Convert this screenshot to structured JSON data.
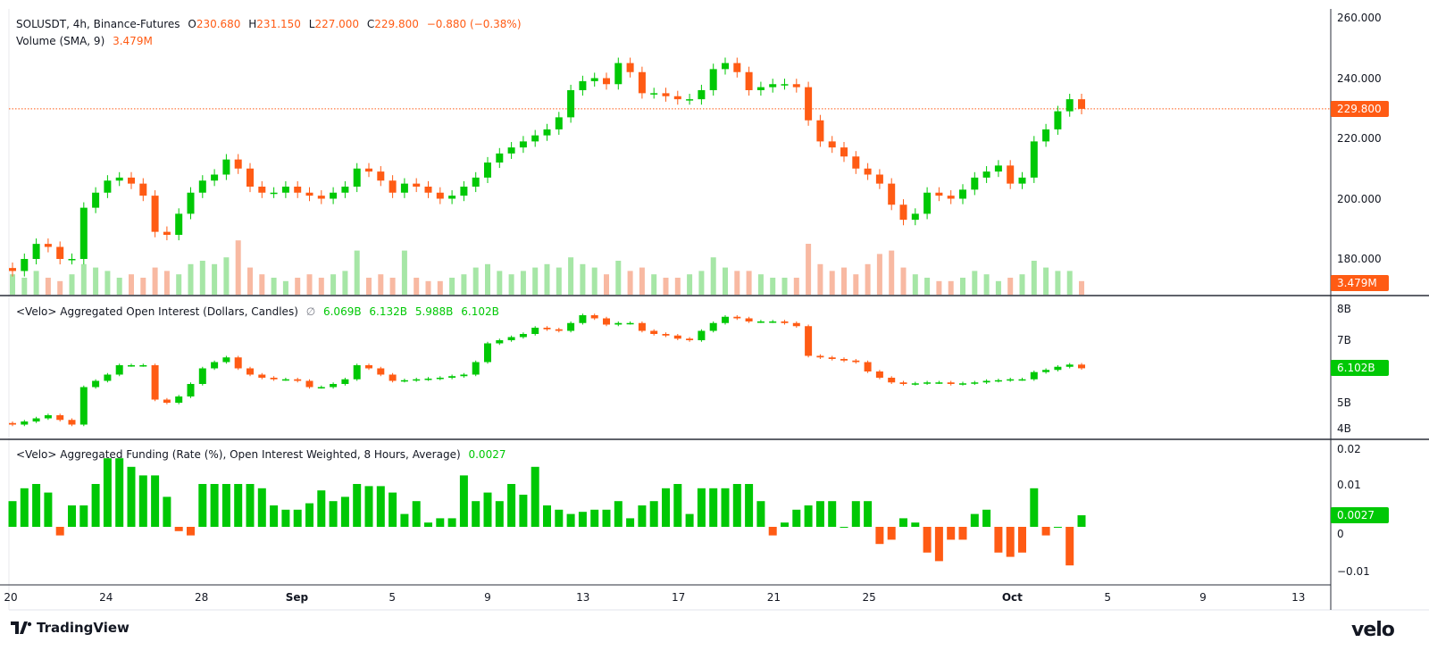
{
  "header": {
    "symbol": "SOLUSDT, 4h, Binance-Futures",
    "o_label": "O",
    "o": "230.680",
    "h_label": "H",
    "h": "231.150",
    "l_label": "L",
    "l": "227.000",
    "c_label": "C",
    "c": "229.800",
    "change": "−0.880 (−0.38%)"
  },
  "volume_legend": {
    "label": "Volume (SMA, 9)",
    "value": "3.479M"
  },
  "oi_legend": {
    "label": "<Velo> Aggregated Open Interest (Dollars, Candles)",
    "symbol": "∅",
    "o": "6.069B",
    "h": "6.132B",
    "l": "5.988B",
    "c": "6.102B"
  },
  "funding_legend": {
    "label": "<Velo> Aggregated Funding (Rate (%), Open Interest Weighted, 8 Hours, Average)",
    "value": "0.0027"
  },
  "price_axis": [
    "260.000",
    "240.000",
    "220.000",
    "200.000",
    "180.000"
  ],
  "oi_axis": [
    "8B",
    "7B",
    "5B",
    "4B"
  ],
  "funding_axis": [
    "0.02",
    "0.01",
    "0",
    "−0.01"
  ],
  "tags": {
    "price": "229.800",
    "volume": "3.479M",
    "oi": "6.102B",
    "funding": "0.0027"
  },
  "x_ticks": [
    "20",
    "24",
    "28",
    "Sep",
    "5",
    "9",
    "13",
    "17",
    "21",
    "25",
    "Oct",
    "5",
    "9",
    "13"
  ],
  "brand": {
    "tradingview": "TradingView",
    "velo": "velo"
  },
  "colors": {
    "up": "#00c805",
    "down": "#ff5b14",
    "vol_up": "#a6e6a6",
    "vol_down": "#f8b9a2"
  },
  "chart_data": [
    {
      "type": "candlestick",
      "title": "SOLUSDT, 4h, Binance-Futures",
      "ylim": [
        170,
        262
      ],
      "close": [
        176,
        180,
        185,
        184,
        180,
        180,
        197,
        202,
        206,
        207,
        205,
        201,
        189,
        188,
        195,
        202,
        206,
        208,
        213,
        210,
        204,
        202,
        202,
        204,
        202,
        201,
        200,
        202,
        204,
        210,
        209,
        206,
        202,
        205,
        204,
        202,
        200,
        201,
        204,
        207,
        212,
        215,
        217,
        219,
        221,
        223,
        227,
        236,
        239,
        240,
        238,
        245,
        242,
        235,
        235,
        234,
        233,
        233,
        236,
        243,
        245,
        242,
        236,
        237,
        238,
        238,
        237,
        226,
        219,
        217,
        214,
        210,
        208,
        205,
        198,
        193,
        195,
        202,
        201,
        200,
        203,
        207,
        209,
        211,
        205,
        207,
        219,
        223,
        229,
        233,
        229.8
      ],
      "volume_millions": [
        6,
        5,
        7,
        5,
        4,
        6,
        9,
        8,
        7,
        5,
        6,
        5,
        8,
        7,
        6,
        9,
        10,
        9,
        11,
        16,
        8,
        6,
        5,
        4,
        5,
        6,
        5,
        6,
        7,
        13,
        5,
        6,
        5,
        13,
        5,
        4,
        4,
        5,
        6,
        8,
        9,
        7,
        6,
        7,
        8,
        9,
        8,
        11,
        9,
        8,
        6,
        10,
        7,
        8,
        6,
        5,
        5,
        6,
        7,
        11,
        8,
        7,
        7,
        6,
        5,
        5,
        5,
        15,
        9,
        7,
        8,
        6,
        9,
        12,
        13,
        8,
        6,
        5,
        4,
        4,
        5,
        7,
        6,
        4,
        5,
        6,
        10,
        8,
        7,
        7,
        4
      ]
    },
    {
      "type": "candlestick",
      "title": "<Velo> Aggregated Open Interest (Dollars, Candles)",
      "unit": "B",
      "ylim": [
        4,
        8.2
      ],
      "close": [
        4.3,
        4.4,
        4.5,
        4.6,
        4.45,
        4.3,
        5.5,
        5.7,
        5.9,
        6.2,
        6.2,
        6.2,
        5.1,
        5.0,
        5.2,
        5.6,
        6.1,
        6.3,
        6.45,
        6.1,
        5.9,
        5.8,
        5.75,
        5.75,
        5.7,
        5.5,
        5.5,
        5.6,
        5.75,
        6.2,
        6.1,
        5.9,
        5.7,
        5.72,
        5.75,
        5.77,
        5.8,
        5.85,
        5.9,
        6.3,
        6.9,
        7.0,
        7.1,
        7.2,
        7.4,
        7.35,
        7.3,
        7.55,
        7.8,
        7.7,
        7.5,
        7.55,
        7.55,
        7.3,
        7.2,
        7.15,
        7.05,
        7.0,
        7.3,
        7.55,
        7.75,
        7.7,
        7.6,
        7.6,
        7.6,
        7.55,
        7.45,
        6.5,
        6.45,
        6.4,
        6.35,
        6.3,
        6.0,
        5.8,
        5.65,
        5.6,
        5.62,
        5.65,
        5.65,
        5.6,
        5.62,
        5.65,
        5.7,
        5.72,
        5.75,
        5.75,
        5.98,
        6.05,
        6.15,
        6.22,
        6.102
      ]
    },
    {
      "type": "bar",
      "title": "<Velo> Aggregated Funding (Rate (%), Open Interest Weighted, 8 Hours, Average)",
      "ylim": [
        -0.012,
        0.02
      ],
      "values": [
        0.006,
        0.009,
        0.01,
        0.008,
        -0.002,
        0.005,
        0.005,
        0.01,
        0.016,
        0.016,
        0.014,
        0.012,
        0.012,
        0.007,
        -0.001,
        -0.002,
        0.01,
        0.01,
        0.01,
        0.01,
        0.01,
        0.009,
        0.005,
        0.004,
        0.004,
        0.0055,
        0.0085,
        0.006,
        0.007,
        0.01,
        0.0095,
        0.0095,
        0.008,
        0.003,
        0.006,
        0.001,
        0.002,
        0.002,
        0.012,
        0.006,
        0.008,
        0.006,
        0.01,
        0.0075,
        0.014,
        0.005,
        0.004,
        0.003,
        0.0035,
        0.004,
        0.004,
        0.006,
        0.002,
        0.005,
        0.006,
        0.009,
        0.01,
        0.003,
        0.009,
        0.009,
        0.009,
        0.01,
        0.01,
        0.006,
        -0.002,
        0.001,
        0.004,
        0.005,
        0.006,
        0.006,
        0.0,
        0.006,
        0.006,
        -0.004,
        -0.003,
        0.002,
        0.001,
        -0.006,
        -0.008,
        -0.003,
        -0.003,
        0.003,
        0.004,
        -0.006,
        -0.007,
        -0.006,
        0.009,
        -0.002,
        0.0,
        -0.009,
        0.0027
      ]
    }
  ]
}
